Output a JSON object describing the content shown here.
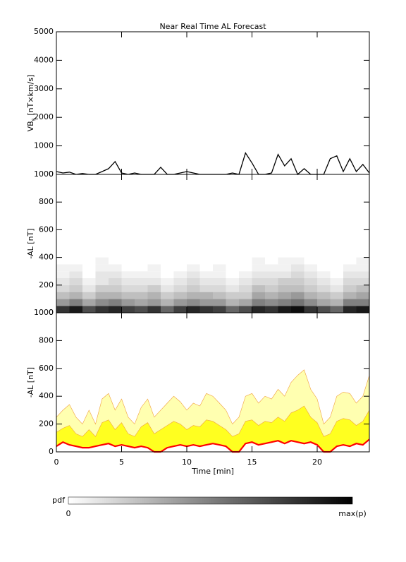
{
  "title": "Near Real Time AL Forecast",
  "chart_data": [
    {
      "type": "line",
      "ylabel": {
        "main": "VB",
        "sub": "s",
        "unit": " [nT×km/s]"
      },
      "xlim": [
        0,
        24
      ],
      "xticks": [
        0,
        5,
        10,
        15,
        20
      ],
      "ylim": [
        0,
        5000
      ],
      "yticks": [
        0,
        1000,
        2000,
        3000,
        4000,
        5000
      ],
      "color": "#000000",
      "x": [
        0,
        0.5,
        1,
        1.5,
        2,
        2.5,
        3,
        3.5,
        4,
        4.5,
        5,
        5.5,
        6,
        6.5,
        7,
        7.5,
        8,
        8.5,
        9,
        9.5,
        10,
        10.5,
        11,
        11.5,
        12,
        12.5,
        13,
        13.5,
        14,
        14.5,
        15,
        15.5,
        16,
        16.5,
        17,
        17.5,
        18,
        18.5,
        19,
        19.5,
        20,
        20.5,
        21,
        21.5,
        22,
        22.5,
        23,
        23.5,
        24
      ],
      "values": [
        100,
        50,
        80,
        0,
        30,
        0,
        0,
        100,
        200,
        450,
        50,
        0,
        50,
        0,
        0,
        0,
        250,
        0,
        0,
        50,
        100,
        50,
        0,
        0,
        0,
        0,
        0,
        50,
        0,
        750,
        400,
        0,
        0,
        50,
        700,
        300,
        550,
        0,
        200,
        0,
        0,
        0,
        550,
        650,
        100,
        550,
        100,
        350,
        50
      ]
    },
    {
      "type": "heatmap",
      "ylabel": "-AL [nT]",
      "xlim": [
        0,
        24
      ],
      "xticks": [
        0,
        5,
        10,
        15,
        20
      ],
      "ylim": [
        0,
        1000
      ],
      "yticks": [
        0,
        200,
        400,
        600,
        800,
        1000
      ],
      "x_bins": [
        0,
        1,
        2,
        3,
        4,
        5,
        6,
        7,
        8,
        9,
        10,
        11,
        12,
        13,
        14,
        15,
        16,
        17,
        18,
        19,
        20,
        21,
        22,
        23,
        24
      ],
      "y_bins": [
        0,
        50,
        100,
        150,
        200,
        250,
        300,
        350,
        400
      ],
      "pdf": [
        [
          0.8,
          0.4,
          0.25,
          0.15,
          0.1,
          0.05,
          0.05,
          0
        ],
        [
          0.9,
          0.5,
          0.3,
          0.2,
          0.15,
          0.1,
          0.05,
          0
        ],
        [
          0.7,
          0.35,
          0.2,
          0.1,
          0.05,
          0,
          0,
          0
        ],
        [
          0.8,
          0.45,
          0.3,
          0.2,
          0.1,
          0.1,
          0.05,
          0.05
        ],
        [
          0.85,
          0.5,
          0.3,
          0.2,
          0.15,
          0.1,
          0.05,
          0
        ],
        [
          0.75,
          0.4,
          0.25,
          0.15,
          0.1,
          0.05,
          0,
          0
        ],
        [
          0.7,
          0.35,
          0.25,
          0.15,
          0.1,
          0.05,
          0,
          0
        ],
        [
          0.8,
          0.4,
          0.3,
          0.2,
          0.1,
          0.05,
          0.05,
          0
        ],
        [
          0.6,
          0.3,
          0.2,
          0.1,
          0.05,
          0,
          0,
          0
        ],
        [
          0.75,
          0.4,
          0.25,
          0.15,
          0.1,
          0.05,
          0,
          0
        ],
        [
          0.85,
          0.45,
          0.3,
          0.2,
          0.15,
          0.1,
          0.05,
          0
        ],
        [
          0.8,
          0.4,
          0.3,
          0.15,
          0.1,
          0.05,
          0,
          0
        ],
        [
          0.75,
          0.4,
          0.25,
          0.15,
          0.1,
          0.05,
          0.05,
          0
        ],
        [
          0.6,
          0.3,
          0.2,
          0.1,
          0.05,
          0,
          0,
          0
        ],
        [
          0.7,
          0.35,
          0.2,
          0.15,
          0.1,
          0.05,
          0,
          0
        ],
        [
          0.85,
          0.5,
          0.35,
          0.25,
          0.15,
          0.1,
          0.05,
          0.05
        ],
        [
          0.8,
          0.45,
          0.3,
          0.2,
          0.15,
          0.1,
          0.05,
          0
        ],
        [
          0.9,
          0.5,
          0.35,
          0.25,
          0.2,
          0.1,
          0.05,
          0.05
        ],
        [
          0.95,
          0.55,
          0.4,
          0.25,
          0.2,
          0.15,
          0.1,
          0.05
        ],
        [
          0.8,
          0.45,
          0.3,
          0.2,
          0.15,
          0.1,
          0.05,
          0
        ],
        [
          0.7,
          0.35,
          0.25,
          0.15,
          0.1,
          0.05,
          0,
          0
        ],
        [
          0.6,
          0.3,
          0.2,
          0.1,
          0.05,
          0,
          0,
          0
        ],
        [
          0.85,
          0.5,
          0.3,
          0.2,
          0.15,
          0.1,
          0.05,
          0
        ],
        [
          0.9,
          0.5,
          0.35,
          0.25,
          0.15,
          0.1,
          0.05,
          0.05
        ]
      ],
      "colorbar": {
        "label": "pdf",
        "min_label": "0",
        "max_label": "max(p)"
      }
    },
    {
      "type": "area",
      "ylabel": "-AL [nT]",
      "xlabel": "Time [min]",
      "xlim": [
        0,
        24
      ],
      "xticks": [
        0,
        5,
        10,
        15,
        20
      ],
      "ylim": [
        0,
        1000
      ],
      "yticks": [
        0,
        200,
        400,
        600,
        800,
        1000
      ],
      "x": [
        0,
        0.5,
        1,
        1.5,
        2,
        2.5,
        3,
        3.5,
        4,
        4.5,
        5,
        5.5,
        6,
        6.5,
        7,
        7.5,
        8,
        8.5,
        9,
        9.5,
        10,
        10.5,
        11,
        11.5,
        12,
        12.5,
        13,
        13.5,
        14,
        14.5,
        15,
        15.5,
        16,
        16.5,
        17,
        17.5,
        18,
        18.5,
        19,
        19.5,
        20,
        20.5,
        21,
        21.5,
        22,
        22.5,
        23,
        23.5,
        24
      ],
      "series": [
        {
          "color": "#ffffb0",
          "values": [
            250,
            300,
            340,
            250,
            200,
            300,
            200,
            380,
            420,
            300,
            380,
            250,
            200,
            320,
            380,
            250,
            300,
            350,
            400,
            360,
            300,
            350,
            330,
            420,
            400,
            350,
            300,
            200,
            250,
            400,
            420,
            350,
            400,
            380,
            450,
            400,
            500,
            550,
            590,
            450,
            380,
            200,
            250,
            400,
            430,
            420,
            350,
            400,
            550
          ]
        },
        {
          "color": "#ffff20",
          "values": [
            140,
            170,
            190,
            130,
            110,
            160,
            110,
            210,
            230,
            160,
            210,
            130,
            110,
            180,
            210,
            130,
            160,
            190,
            220,
            200,
            160,
            190,
            180,
            230,
            220,
            190,
            160,
            110,
            130,
            220,
            230,
            190,
            220,
            210,
            250,
            220,
            280,
            300,
            330,
            250,
            210,
            110,
            130,
            220,
            240,
            230,
            190,
            220,
            300
          ]
        },
        {
          "color": "#ff0000",
          "values": [
            40,
            70,
            50,
            40,
            30,
            30,
            40,
            50,
            60,
            40,
            50,
            40,
            30,
            40,
            30,
            0,
            0,
            30,
            40,
            50,
            40,
            50,
            40,
            50,
            60,
            50,
            40,
            0,
            0,
            60,
            70,
            50,
            60,
            70,
            80,
            60,
            80,
            70,
            60,
            70,
            50,
            0,
            0,
            40,
            50,
            40,
            60,
            50,
            90
          ]
        }
      ]
    }
  ]
}
